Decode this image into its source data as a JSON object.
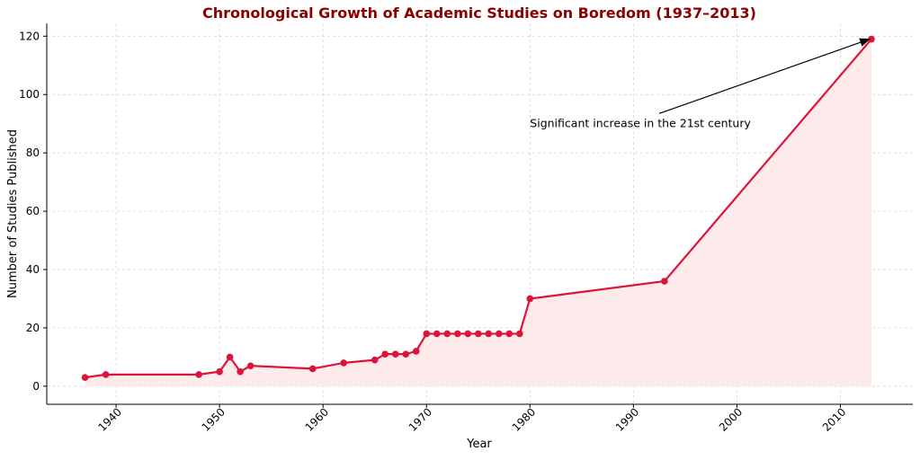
{
  "chart_data": {
    "type": "line",
    "title": "Chronological Growth of Academic Studies on Boredom (1937–2013)",
    "xlabel": "Year",
    "ylabel": "Number of Studies Published",
    "xlim": [
      1933.3,
      2017.0
    ],
    "ylim": [
      -6.2,
      124.4
    ],
    "xticks": [
      1940,
      1950,
      1960,
      1970,
      1980,
      1990,
      2000,
      2010
    ],
    "yticks": [
      0,
      20,
      40,
      60,
      80,
      100,
      120
    ],
    "grid": true,
    "x": [
      1937,
      1939,
      1948,
      1950,
      1951,
      1952,
      1953,
      1959,
      1962,
      1965,
      1966,
      1967,
      1968,
      1969,
      1970,
      1971,
      1972,
      1973,
      1974,
      1975,
      1976,
      1977,
      1978,
      1979,
      1980,
      1993,
      2013
    ],
    "y": [
      3,
      4,
      4,
      5,
      10,
      5,
      7,
      6,
      8,
      9,
      11,
      11,
      11,
      12,
      18,
      18,
      18,
      18,
      18,
      18,
      18,
      18,
      18,
      18,
      30,
      36,
      119
    ],
    "annotation": {
      "text": "Significant increase in the 21st century",
      "point": [
        2013,
        119
      ],
      "text_pos": [
        1980,
        90
      ]
    },
    "colors": {
      "line": "#dc143c",
      "fill": "#fdeaea",
      "title": "#8b0000"
    }
  }
}
